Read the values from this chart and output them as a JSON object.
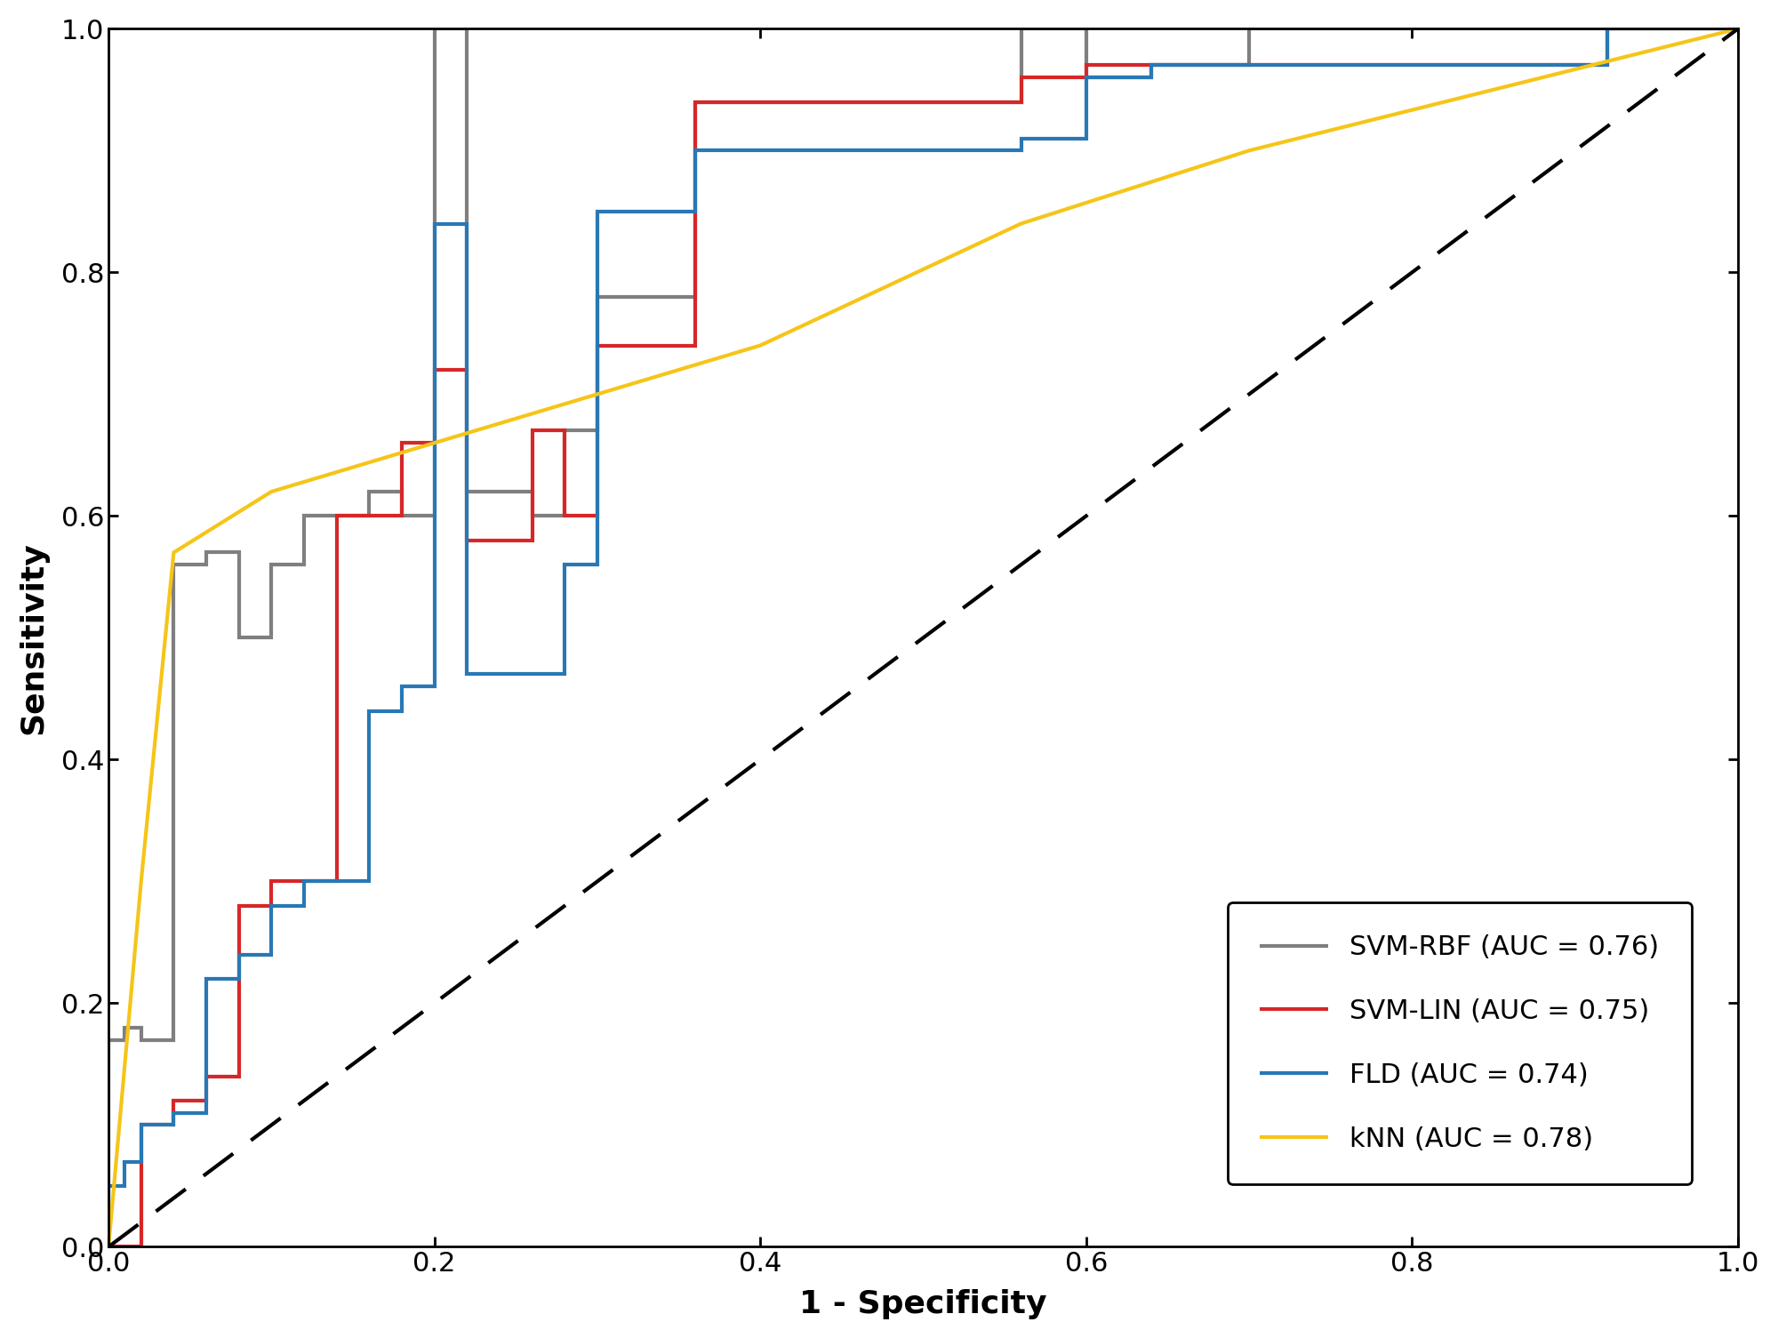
{
  "fld": {
    "fpr": [
      0.0,
      0.0,
      0.01,
      0.01,
      0.02,
      0.02,
      0.04,
      0.04,
      0.06,
      0.06,
      0.08,
      0.08,
      0.1,
      0.1,
      0.12,
      0.12,
      0.16,
      0.16,
      0.18,
      0.18,
      0.2,
      0.2,
      0.22,
      0.22,
      0.28,
      0.28,
      0.3,
      0.3,
      0.36,
      0.36,
      0.56,
      0.56,
      0.6,
      0.6,
      0.64,
      0.64,
      0.92,
      0.92,
      1.0
    ],
    "tpr": [
      0.0,
      0.05,
      0.05,
      0.07,
      0.07,
      0.1,
      0.1,
      0.11,
      0.11,
      0.22,
      0.22,
      0.24,
      0.24,
      0.28,
      0.28,
      0.3,
      0.3,
      0.44,
      0.44,
      0.46,
      0.46,
      0.84,
      0.84,
      0.47,
      0.47,
      0.56,
      0.56,
      0.85,
      0.85,
      0.9,
      0.9,
      0.91,
      0.91,
      0.96,
      0.96,
      0.97,
      0.97,
      1.0,
      1.0
    ],
    "color": "#2878b5",
    "label": "FLD (AUC = 0.74)"
  },
  "svm_lin": {
    "fpr": [
      0.0,
      0.02,
      0.02,
      0.04,
      0.04,
      0.06,
      0.06,
      0.08,
      0.08,
      0.1,
      0.1,
      0.14,
      0.14,
      0.18,
      0.18,
      0.2,
      0.2,
      0.22,
      0.22,
      0.26,
      0.26,
      0.28,
      0.28,
      0.3,
      0.3,
      0.36,
      0.36,
      0.56,
      0.56,
      0.6,
      0.6,
      0.92,
      0.92,
      1.0
    ],
    "tpr": [
      0.0,
      0.0,
      0.1,
      0.1,
      0.12,
      0.12,
      0.14,
      0.14,
      0.28,
      0.28,
      0.3,
      0.3,
      0.6,
      0.6,
      0.66,
      0.66,
      0.72,
      0.72,
      0.58,
      0.58,
      0.67,
      0.67,
      0.6,
      0.6,
      0.74,
      0.74,
      0.94,
      0.94,
      0.96,
      0.96,
      0.97,
      0.97,
      1.0,
      1.0
    ],
    "color": "#d62728",
    "label": "SVM-LIN (AUC = 0.75)"
  },
  "svm_rbf": {
    "fpr": [
      0.0,
      0.0,
      0.01,
      0.01,
      0.02,
      0.02,
      0.04,
      0.04,
      0.06,
      0.06,
      0.08,
      0.08,
      0.1,
      0.1,
      0.12,
      0.12,
      0.16,
      0.16,
      0.18,
      0.18,
      0.2,
      0.2,
      0.22,
      0.22,
      0.26,
      0.26,
      0.28,
      0.28,
      0.3,
      0.3,
      0.36,
      0.36,
      0.56,
      0.56,
      0.6,
      0.6,
      0.64,
      0.64,
      0.7,
      0.7,
      0.92,
      0.92,
      1.0
    ],
    "tpr": [
      0.0,
      0.17,
      0.17,
      0.18,
      0.18,
      0.17,
      0.17,
      0.56,
      0.56,
      0.57,
      0.57,
      0.5,
      0.5,
      0.56,
      0.56,
      0.6,
      0.6,
      0.62,
      0.62,
      0.6,
      0.6,
      1.0,
      1.0,
      0.62,
      0.62,
      0.6,
      0.6,
      0.67,
      0.67,
      0.78,
      0.78,
      0.94,
      0.94,
      1.0,
      1.0,
      0.96,
      0.96,
      0.97,
      0.97,
      1.0,
      1.0,
      1.0,
      1.0
    ],
    "color": "#7f7f7f",
    "label": "SVM-RBF (AUC = 0.76)"
  },
  "knn": {
    "fpr": [
      0.0,
      0.0,
      0.02,
      0.04,
      0.1,
      0.2,
      0.3,
      0.4,
      0.56,
      0.7,
      0.85,
      1.0
    ],
    "tpr": [
      0.0,
      0.0,
      0.3,
      0.57,
      0.62,
      0.66,
      0.7,
      0.74,
      0.84,
      0.9,
      0.95,
      1.0
    ],
    "color": "#f5c518",
    "label": "kNN (AUC = 0.78)"
  },
  "xlabel": "1 - Specificity",
  "ylabel": "Sensitivity",
  "xlim": [
    0,
    1
  ],
  "ylim": [
    0,
    1
  ],
  "linewidth": 3.0,
  "legend_fontsize": 22,
  "axis_label_fontsize": 26,
  "tick_fontsize": 22
}
